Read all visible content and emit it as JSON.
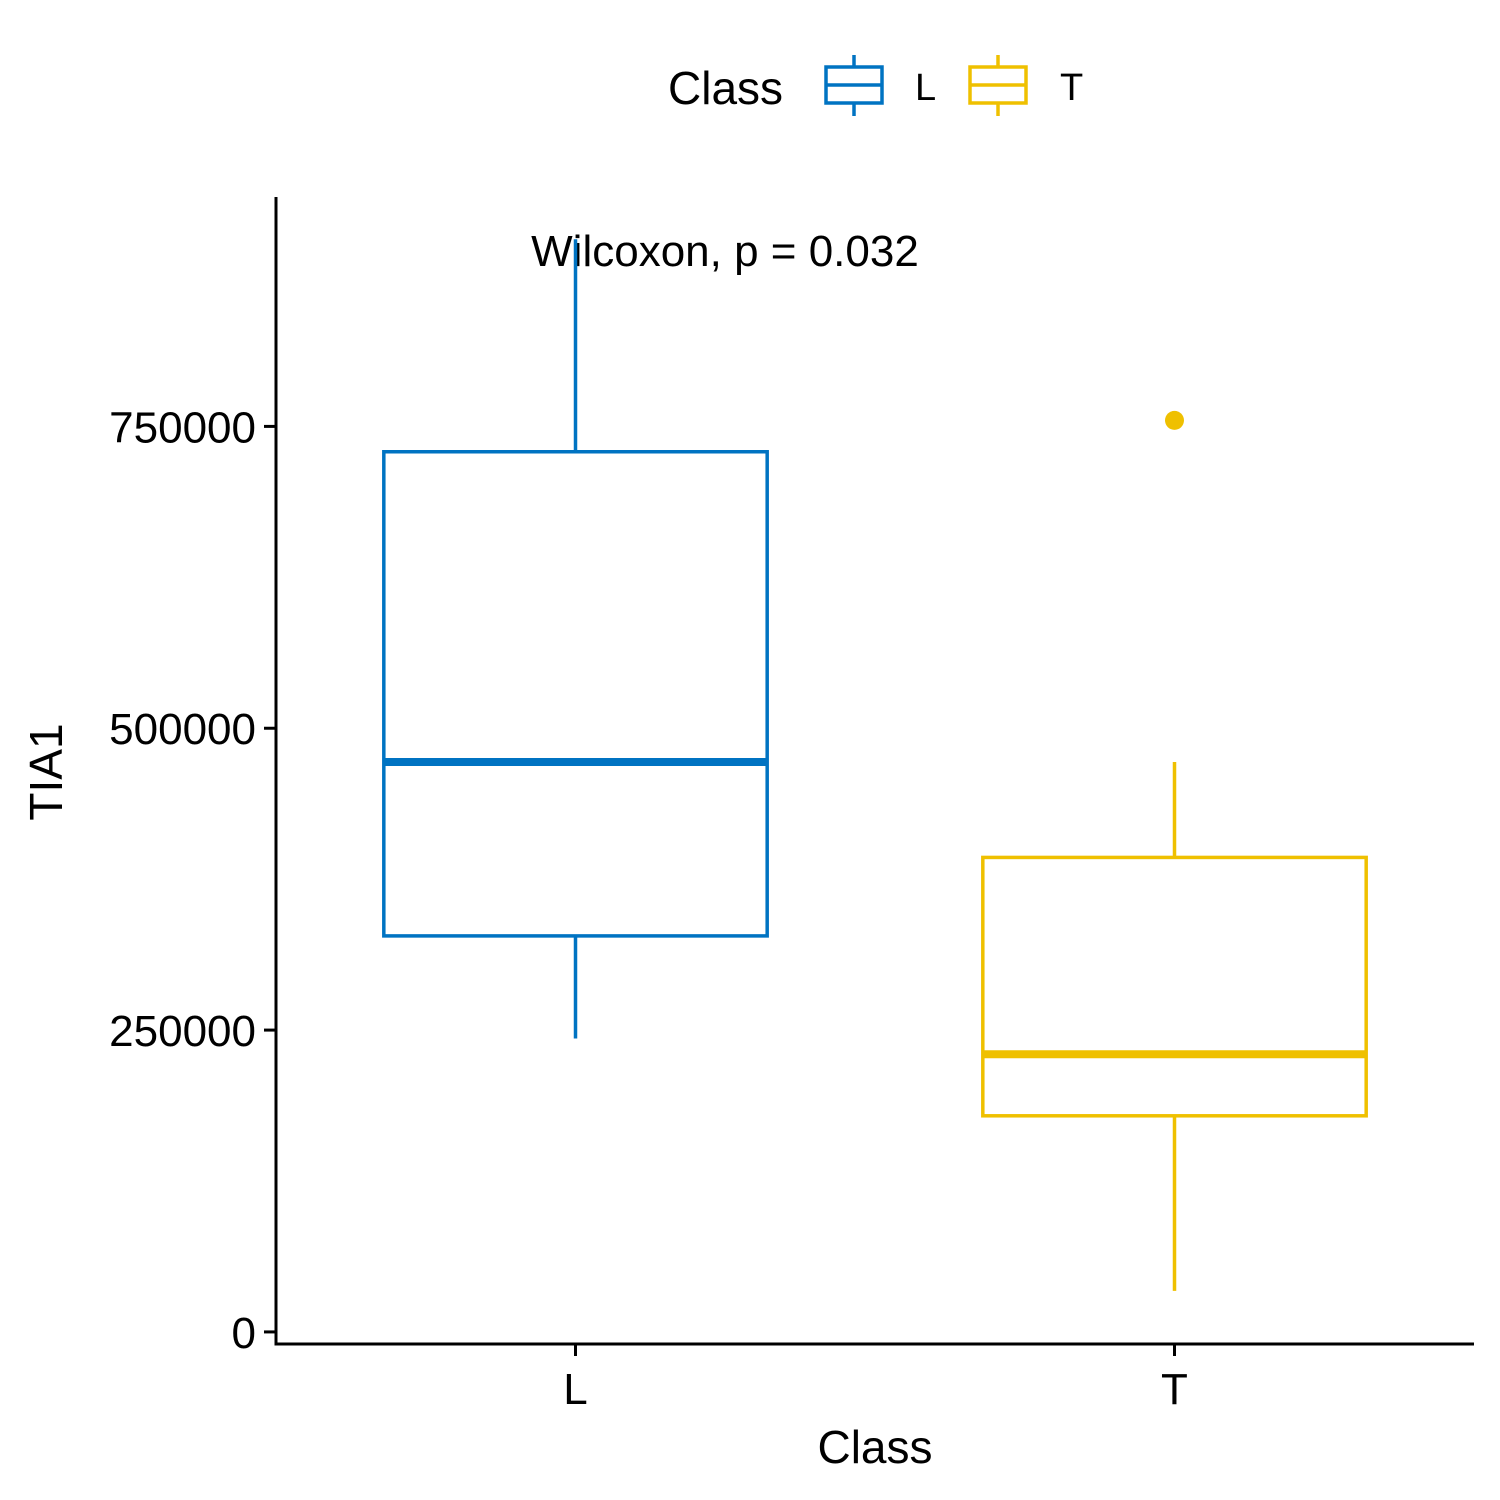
{
  "chart_data": {
    "type": "box",
    "title": "",
    "xlabel": "Class",
    "ylabel": "TIA1",
    "categories": [
      "L",
      "T"
    ],
    "ylim": [
      -10000,
      940000
    ],
    "yticks": [
      0,
      250000,
      500000,
      750000
    ],
    "ytick_labels": [
      "0",
      "250000",
      "500000",
      "750000"
    ],
    "grid": false,
    "legend": {
      "title": "Class",
      "position": "top",
      "items": [
        {
          "label": "L",
          "color": "#0073C2"
        },
        {
          "label": "T",
          "color": "#EFC000"
        }
      ]
    },
    "annotation": "Wilcoxon, p = 0.032",
    "series": [
      {
        "category": "L",
        "color": "#0073C2",
        "whisker_low": 243000,
        "q1": 328000,
        "median": 472000,
        "q3": 729000,
        "whisker_high": 905000,
        "outliers": []
      },
      {
        "category": "T",
        "color": "#EFC000",
        "whisker_low": 34000,
        "q1": 179000,
        "median": 230000,
        "q3": 393000,
        "whisker_high": 472000,
        "outliers": [
          755000
        ]
      }
    ]
  }
}
